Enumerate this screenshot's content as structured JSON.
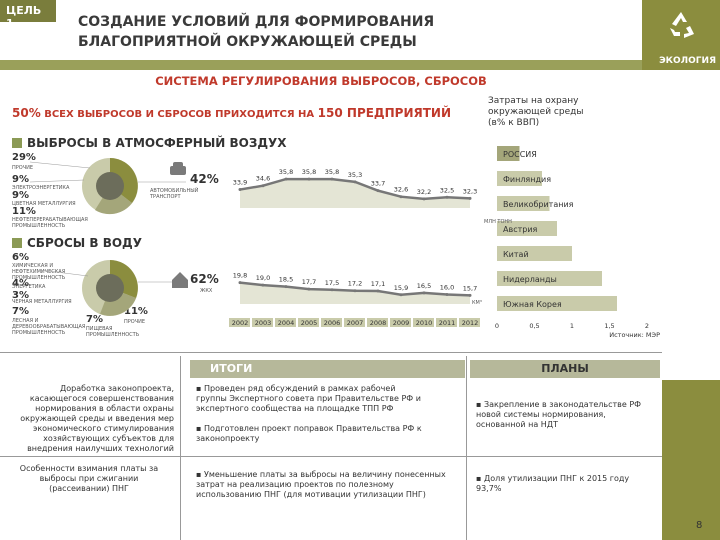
{
  "header": {
    "goal_tag": "ЦЕЛЬ 1",
    "title": "СОЗДАНИЕ УСЛОВИЙ ДЛЯ ФОРМИРОВАНИЯ БЛАГОПРИЯТНОЙ ОКРУЖАЮЩЕЙ СРЕДЫ",
    "eco_label": "ЭКОЛОГИЯ"
  },
  "section_title": "СИСТЕМА РЕГУЛИРОВАНИЯ ВЫБРОСОВ, СБРОСОВ",
  "subtitle": {
    "pct": "50%",
    "text1": " ВСЕХ ВЫБРОСОВ И СБРОСОВ ПРИХОДИТСЯ НА ",
    "count": "150",
    "text2": " ПРЕДПРИЯТИЙ"
  },
  "costs_note": "Затраты на охрану окружающей среды (в% к ВВП)",
  "air": {
    "head": "ВЫБРОСЫ В АТМОСФЕРНЫЙ ВОЗДУХ",
    "p1": "29%",
    "l1": "прочие",
    "p2": "9%",
    "l2": "электроэнергетика",
    "p3": "9%",
    "l3": "цветная металлургия",
    "p4": "11%",
    "l4": "нефтеперерабатывающая промышленность",
    "big": "42%",
    "big_label": "автомобильный транспорт",
    "unit": "млн тонн"
  },
  "water": {
    "head": "СБРОСЫ В ВОДУ",
    "p1": "6%",
    "l1": "химическая и нефтехимическая промышленность",
    "p2": "4%",
    "l2": "энергетика",
    "p3": "3%",
    "l3": "черная металлургия",
    "p4": "7%",
    "l4": "лесная и деревообрабатывающая промышленность",
    "p5": "7%",
    "l5": "пищевая промышленность",
    "p6": "11%",
    "l6": "прочие",
    "big": "62%",
    "big_label": "жкх",
    "unit": "км³"
  },
  "chart_data": [
    {
      "type": "line",
      "title": "",
      "ylabel": "млн тонн",
      "x": [
        "2002",
        "2003",
        "2004",
        "2005",
        "2006",
        "2007",
        "2008",
        "2009",
        "2010",
        "2011",
        "2012"
      ],
      "series": [
        {
          "values": [
            33.9,
            34.6,
            35.8,
            35.8,
            35.8,
            35.3,
            33.7,
            32.6,
            32.2,
            32.5,
            32.3
          ]
        }
      ]
    },
    {
      "type": "line",
      "title": "",
      "ylabel": "км³",
      "x": [
        "2002",
        "2003",
        "2004",
        "2005",
        "2006",
        "2007",
        "2008",
        "2009",
        "2010",
        "2011",
        "2012"
      ],
      "series": [
        {
          "values": [
            19.8,
            19.0,
            18.5,
            17.7,
            17.5,
            17.2,
            17.1,
            15.9,
            16.5,
            16.0,
            15.7
          ]
        }
      ]
    },
    {
      "type": "bar",
      "title": "",
      "categories": [
        "РОССИЯ",
        "Финляндия",
        "Великобритания",
        "Австрия",
        "Китай",
        "Нидерланды",
        "Южная Корея"
      ],
      "values": [
        0.3,
        0.6,
        0.7,
        0.8,
        1.0,
        1.4,
        1.6
      ],
      "xlim": [
        0,
        2
      ],
      "ticks": [
        "0",
        "0,5",
        "1",
        "1,5",
        "2"
      ],
      "source": "Источник: МЭР"
    }
  ],
  "year_labels": [
    "2002",
    "2003",
    "2004",
    "2005",
    "2006",
    "2007",
    "2008",
    "2009",
    "2010",
    "2011",
    "2012"
  ],
  "air_value_labels": [
    "33,9",
    "34,6",
    "35,8",
    "35,8",
    "35,8",
    "35,3",
    "33,7",
    "32,6",
    "32,2",
    "32,5",
    "32,3"
  ],
  "water_value_labels": [
    "19,8",
    "19,0",
    "18,5",
    "17,7",
    "17,5",
    "17,2",
    "17,1",
    "15,9",
    "16,5",
    "16,0",
    "15,7"
  ],
  "itogi": {
    "head": "ИТОГИ",
    "left1": "Доработка законопроекта, касающегося совершенствования нормирования в области охраны окружающей среды и введения мер экономического стимулирования хозяйствующих субъектов для внедрения наилучших технологий",
    "left2": "Особенности взимания платы за выбросы при сжигании (рассеивании) ПНГ",
    "b1": "Проведен ряд обсуждений в рамках рабочей группы Экспертного совета при Правительстве РФ и экспертного сообщества на площадке ТПП РФ",
    "b2": "Подготовлен проект поправок Правительства РФ к законопроекту",
    "b3": "Уменьшение платы за выбросы на величину понесенных затрат на реализацию проектов по полезному использованию ПНГ (для мотивации утилизации ПНГ)"
  },
  "plany": {
    "head": "ПЛАНЫ",
    "b1": "Закрепление в законодательстве РФ новой системы нормирования, основанной на НДТ",
    "b2": "Доля утилизации ПНГ к 2015 году 93,7%"
  },
  "page_number": "8",
  "colors": {
    "olive": "#8b8d3e",
    "red": "#c0392b",
    "bar": "#c9cbaa"
  }
}
